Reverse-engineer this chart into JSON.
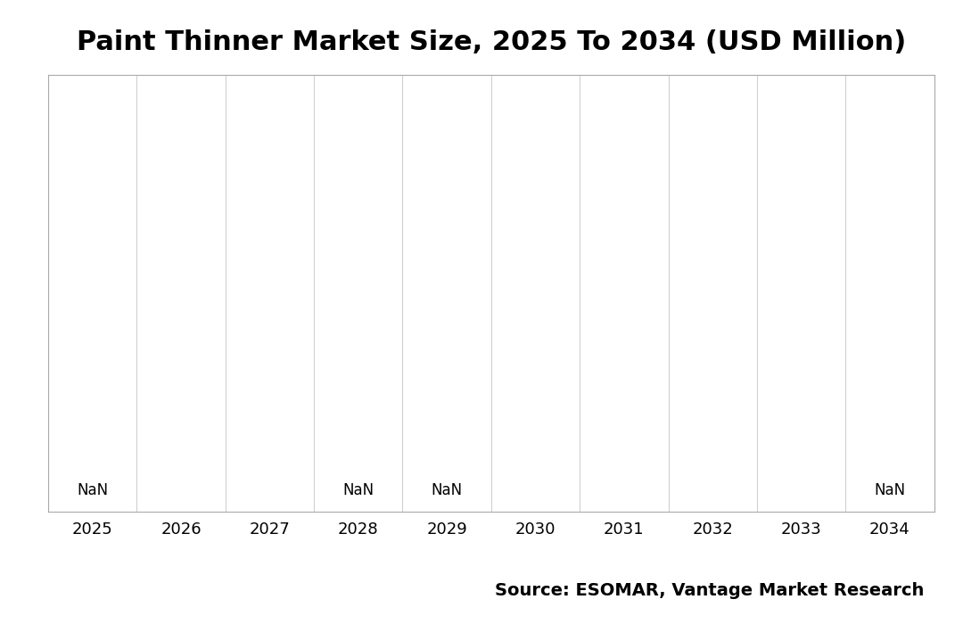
{
  "title": "Paint Thinner Market Size, 2025 To 2034 (USD Million)",
  "years": [
    2025,
    2026,
    2027,
    2028,
    2029,
    2030,
    2031,
    2032,
    2033,
    2034
  ],
  "nan_labels": [
    true,
    false,
    false,
    true,
    true,
    false,
    false,
    false,
    false,
    true
  ],
  "background_color": "#ffffff",
  "grid_color": "#d0d0d0",
  "border_color": "#aaaaaa",
  "source_text": "Source: ESOMAR, Vantage Market Research",
  "title_fontsize": 22,
  "tick_fontsize": 13,
  "source_fontsize": 14,
  "nan_label_fontsize": 12
}
